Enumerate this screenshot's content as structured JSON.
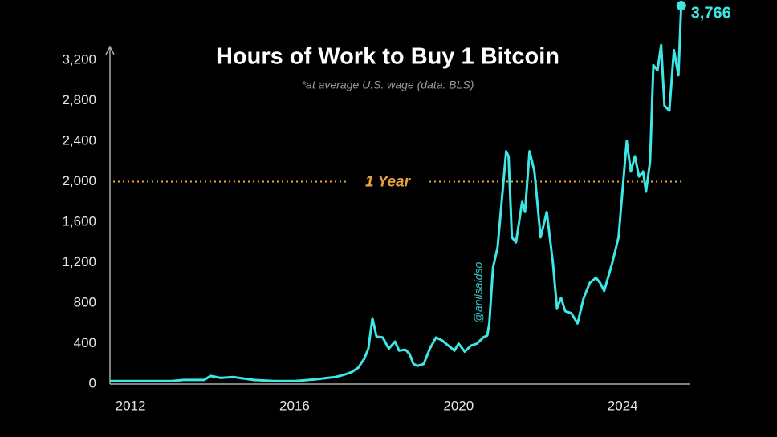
{
  "chart_data": {
    "type": "line",
    "title": "Hours of Work to Buy 1 Bitcoin",
    "subtitle": "*at average U.S. wage (data: BLS)",
    "watermark": "@anilsaidso",
    "color": "#3ee6e6",
    "x": [
      2011.5,
      2012,
      2012.5,
      2013,
      2013.3,
      2013.8,
      2013.95,
      2014.2,
      2014.5,
      2015,
      2015.5,
      2016,
      2016.5,
      2016.8,
      2017.0,
      2017.2,
      2017.4,
      2017.55,
      2017.7,
      2017.8,
      2017.9,
      2018.0,
      2018.15,
      2018.3,
      2018.45,
      2018.55,
      2018.7,
      2018.8,
      2018.9,
      2019.0,
      2019.15,
      2019.3,
      2019.45,
      2019.6,
      2019.75,
      2019.9,
      2020.0,
      2020.15,
      2020.3,
      2020.45,
      2020.6,
      2020.7,
      2020.75,
      2020.84,
      2020.95,
      2021.16,
      2021.22,
      2021.3,
      2021.4,
      2021.55,
      2021.62,
      2021.73,
      2021.85,
      2022.0,
      2022.15,
      2022.3,
      2022.4,
      2022.5,
      2022.6,
      2022.75,
      2022.9,
      2023.05,
      2023.2,
      2023.35,
      2023.45,
      2023.55,
      2023.75,
      2023.9,
      2024.1,
      2024.2,
      2024.3,
      2024.4,
      2024.5,
      2024.57,
      2024.67,
      2024.75,
      2024.85,
      2024.94,
      2025.02,
      2025.14,
      2025.25,
      2025.36,
      2025.43
    ],
    "values": [
      30,
      30,
      30,
      30,
      40,
      40,
      80,
      60,
      70,
      40,
      30,
      30,
      45,
      60,
      70,
      90,
      120,
      160,
      250,
      350,
      650,
      470,
      460,
      350,
      420,
      330,
      340,
      300,
      200,
      180,
      200,
      350,
      460,
      430,
      380,
      330,
      400,
      320,
      380,
      400,
      460,
      480,
      600,
      1150,
      1350,
      2300,
      2250,
      1450,
      1400,
      1800,
      1700,
      2300,
      2100,
      1450,
      1700,
      1200,
      750,
      850,
      720,
      700,
      600,
      850,
      1000,
      1050,
      1000,
      920,
      1200,
      1450,
      2400,
      2100,
      2250,
      2050,
      2100,
      1900,
      2200,
      3150,
      3100,
      3350,
      2750,
      2700,
      3300,
      3050,
      3766
    ],
    "last_label": "3,766",
    "xlim": [
      2011.5,
      2025.65
    ],
    "xticks": [
      2012,
      2016,
      2020,
      2024
    ],
    "ylim": [
      0,
      3300
    ],
    "yticks": [
      0,
      400,
      800,
      {
        "value": 1200,
        "label": "1,200"
      },
      {
        "value": 1600,
        "label": "1,600"
      },
      {
        "value": 2000,
        "label": "2,000"
      },
      {
        "value": 2400,
        "label": "2,400"
      },
      {
        "value": 2800,
        "label": "2,800"
      },
      {
        "value": 3200,
        "label": "3,200"
      }
    ],
    "reference_line": {
      "value": 2000,
      "label": "1 Year",
      "color": "#e8a33d"
    }
  }
}
